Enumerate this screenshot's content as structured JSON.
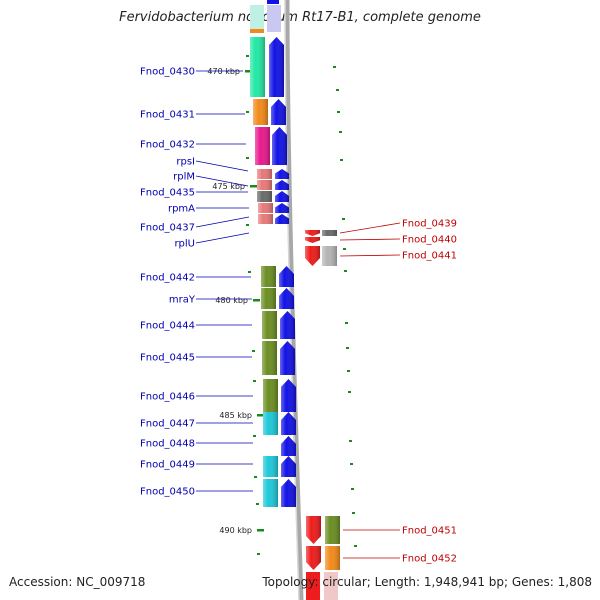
{
  "title": "Fervidobacterium nodosum Rt17-B1, complete genome",
  "accession": "Accession: NC_009718",
  "footer_info": "Topology: circular; Length: 1,948,941 bp; Genes: 1,808",
  "colors": {
    "forward_arrow": "#1212e6",
    "reverse_arrow": "#ee1c1c",
    "left_label": "#0000b0",
    "right_label": "#c00000",
    "tick": "#1a8a1a",
    "genome_line": "#a8a8a8"
  },
  "kbp_labels": [
    "470 kbp",
    "475 kbp",
    "480 kbp",
    "485 kbp",
    "490 kbp"
  ],
  "left_labels": [
    "Fnod_0430",
    "Fnod_0431",
    "Fnod_0432",
    "rpsI",
    "rplM",
    "Fnod_0435",
    "rpmA",
    "Fnod_0437",
    "rplU",
    "Fnod_0442",
    "mraY",
    "Fnod_0444",
    "Fnod_0445",
    "Fnod_0446",
    "Fnod_0447",
    "Fnod_0448",
    "Fnod_0449",
    "Fnod_0450"
  ],
  "right_labels": [
    "Fnod_0439",
    "Fnod_0440",
    "Fnod_0441",
    "Fnod_0451",
    "Fnod_0452"
  ],
  "forward_genes": [
    {
      "label": "Fnod_0430",
      "category_color": "#22e8a4"
    },
    {
      "label": "Fnod_0431",
      "category_color": "#f28a1a"
    },
    {
      "label": "Fnod_0432",
      "category_color": "#e8198e"
    },
    {
      "label": "rpsI",
      "category_color": "#e87878"
    },
    {
      "label": "rplM",
      "category_color": "#e87878"
    },
    {
      "label": "Fnod_0435",
      "category_color": "#6a6a6a"
    },
    {
      "label": "rpmA",
      "category_color": "#e87878"
    },
    {
      "label": "Fnod_0437",
      "category_color": "#e87878"
    },
    {
      "label": "rplU",
      "category_color": "#e87878"
    },
    {
      "label": "Fnod_0442",
      "category_color": "#6b8e23"
    },
    {
      "label": "mraY",
      "category_color": "#6b8e23"
    },
    {
      "label": "Fnod_0444",
      "category_color": "#6b8e23"
    },
    {
      "label": "Fnod_0445",
      "category_color": "#6b8e23"
    },
    {
      "label": "Fnod_0446",
      "category_color": "#6b8e23"
    },
    {
      "label": "Fnod_0447",
      "category_color": "#1ec8d8"
    },
    {
      "label": "Fnod_0448",
      "category_color": ""
    },
    {
      "label": "Fnod_0449",
      "category_color": "#1ec8d8"
    },
    {
      "label": "Fnod_0450",
      "category_color": "#1ec8d8"
    }
  ],
  "reverse_genes": [
    {
      "label": "Fnod_0439",
      "category_color": "#6a6a6a"
    },
    {
      "label": "Fnod_0440",
      "category_color": ""
    },
    {
      "label": "Fnod_0441",
      "category_color": "#b4b4b4"
    },
    {
      "label": "Fnod_0451",
      "category_color": "#6b8e23"
    },
    {
      "label": "Fnod_0452",
      "category_color": "#f28a1a"
    }
  ]
}
